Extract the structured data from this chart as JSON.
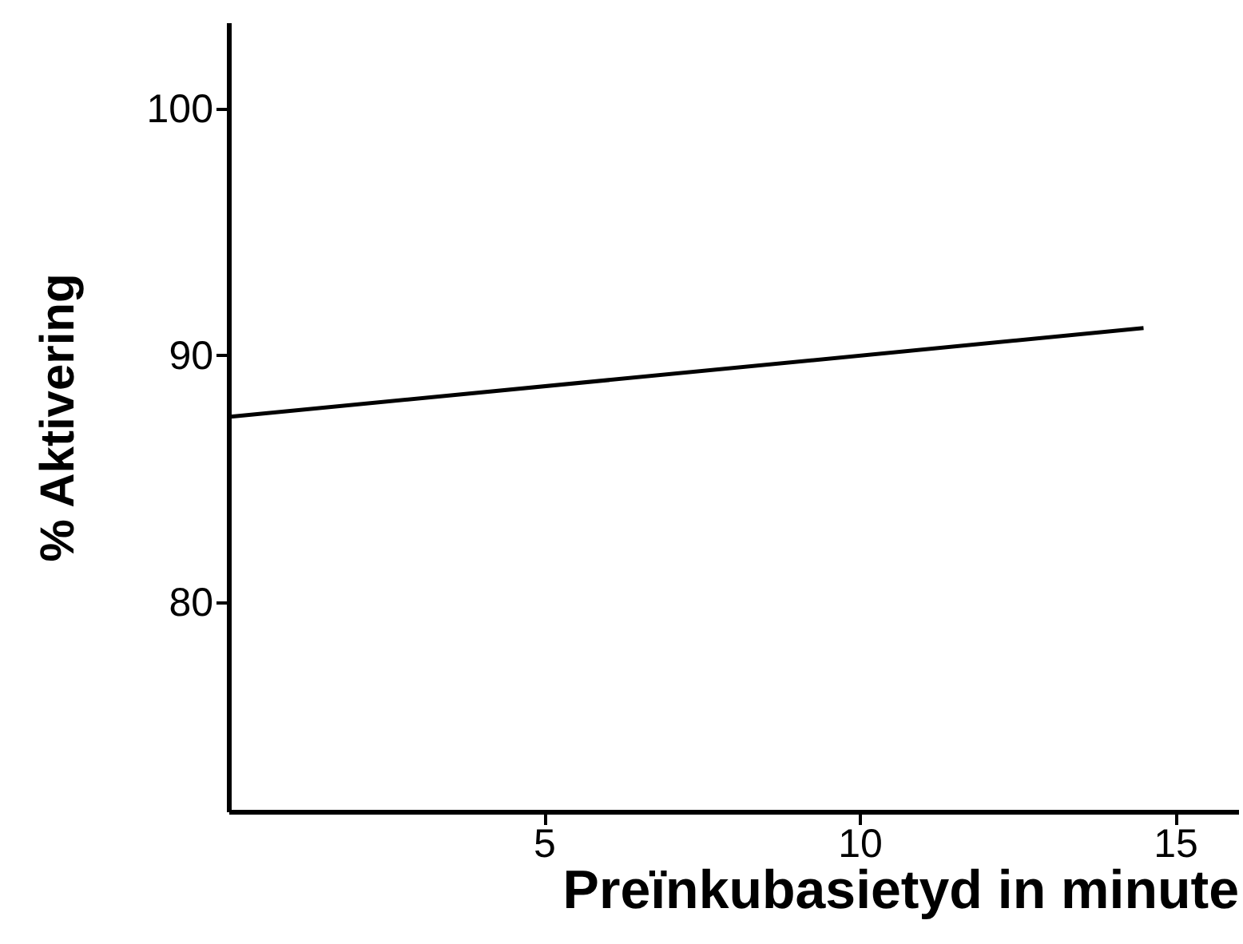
{
  "chart_data": {
    "type": "line",
    "xlabel": "Preïnkubasietyd in minute",
    "ylabel": "% Aktivering",
    "x": [
      0,
      14.5
    ],
    "series": [
      {
        "color": "#000000",
        "values": [
          87.5,
          91.1
        ]
      }
    ],
    "xlim": [
      0,
      16
    ],
    "ylim": [
      71.5,
      103.5
    ],
    "xticks": [
      5,
      10,
      15
    ],
    "yticks": [
      80,
      90,
      100
    ],
    "grid": false,
    "marker": "none",
    "line_style": "solid"
  }
}
